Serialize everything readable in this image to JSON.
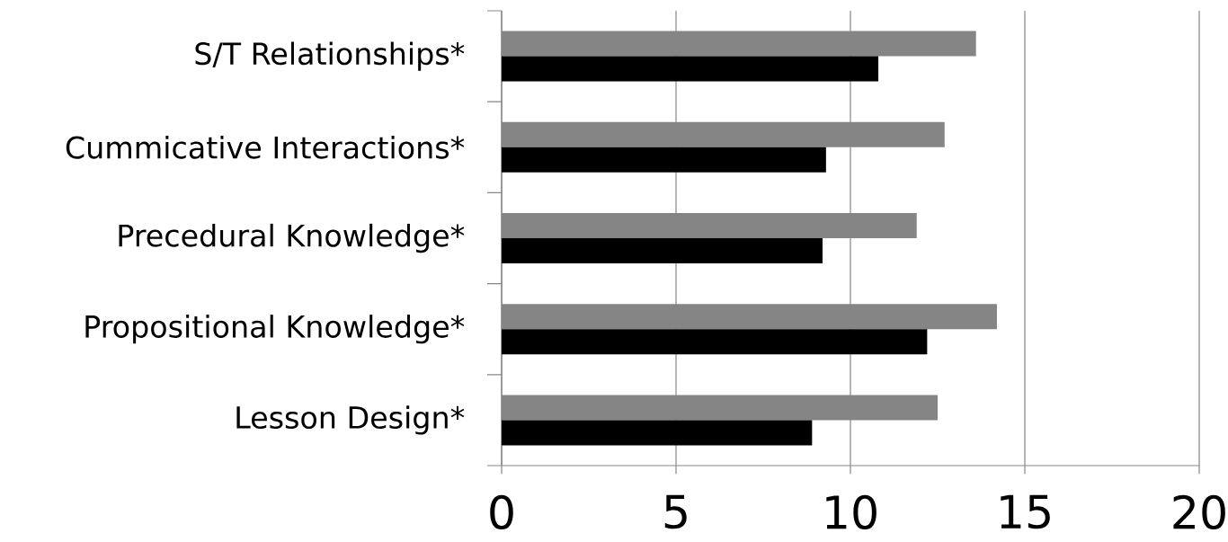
{
  "chart_data": {
    "type": "bar",
    "orientation": "horizontal",
    "categories": [
      "S/T Relationships*",
      "Cummicative Interactions*",
      "Precedural Knowledge*",
      "Propositional Knowledge*",
      "Lesson Design*"
    ],
    "series": [
      {
        "color": "#858585",
        "values": [
          13.6,
          12.7,
          11.9,
          14.2,
          12.5
        ]
      },
      {
        "color": "#000000",
        "values": [
          10.8,
          9.3,
          9.2,
          12.2,
          8.9
        ]
      }
    ],
    "xlim": [
      0,
      20
    ],
    "xticks": [
      0,
      5,
      10,
      15,
      20
    ],
    "grid": "x"
  }
}
